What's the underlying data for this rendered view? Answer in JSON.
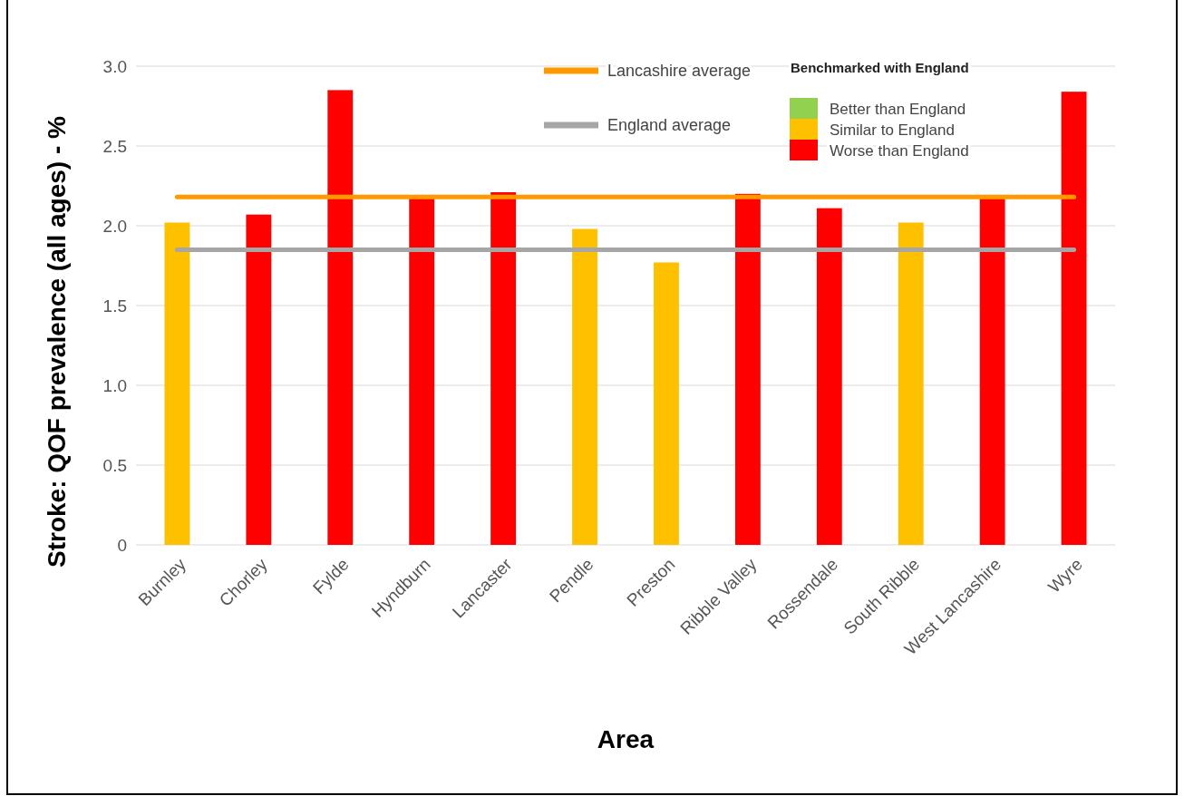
{
  "chart_data": {
    "type": "bar",
    "stacked": true,
    "xlabel": "Area",
    "ylabel": "Stroke: QOF prevalence (all ages) - %",
    "categories": [
      "Burnley",
      "Chorley",
      "Fylde",
      "Hyndburn",
      "Lancaster",
      "Pendle",
      "Preston",
      "Ribble Valley",
      "Rossendale",
      "South Ribble",
      "West Lancashire",
      "Wyre"
    ],
    "series": [
      {
        "name": "Better than England",
        "color": "#92d050",
        "values": [
          null,
          null,
          null,
          null,
          null,
          null,
          null,
          null,
          null,
          null,
          null,
          null
        ]
      },
      {
        "name": "Similar to England",
        "color": "#ffc000",
        "values": [
          2.02,
          null,
          null,
          null,
          null,
          1.98,
          1.77,
          null,
          null,
          2.02,
          null,
          null
        ]
      },
      {
        "name": "Worse than England",
        "color": "#ff0000",
        "values": [
          null,
          2.07,
          2.85,
          2.17,
          2.21,
          null,
          null,
          2.2,
          2.11,
          null,
          2.17,
          2.84
        ]
      }
    ],
    "ylim": [
      0,
      3.0
    ],
    "yticks": [
      0,
      {
        "value": 0.5,
        "label": "0.5"
      },
      {
        "value": 1,
        "label": "1.0"
      },
      {
        "value": 1.5,
        "label": "1.5"
      },
      {
        "value": 2,
        "label": "2.0"
      },
      {
        "value": 2.5,
        "label": "2.5"
      },
      {
        "value": 3,
        "label": "3.0"
      }
    ],
    "grid": "y",
    "legend": "top right",
    "legend_title": "Benchmarked with England",
    "ref_lines": [
      {
        "axis": "y",
        "value": 2.18,
        "label": "Lancashire average",
        "color": "#ff9900"
      },
      {
        "axis": "y",
        "value": 1.85,
        "label": "England average",
        "color": "#a6a6a6"
      }
    ]
  }
}
